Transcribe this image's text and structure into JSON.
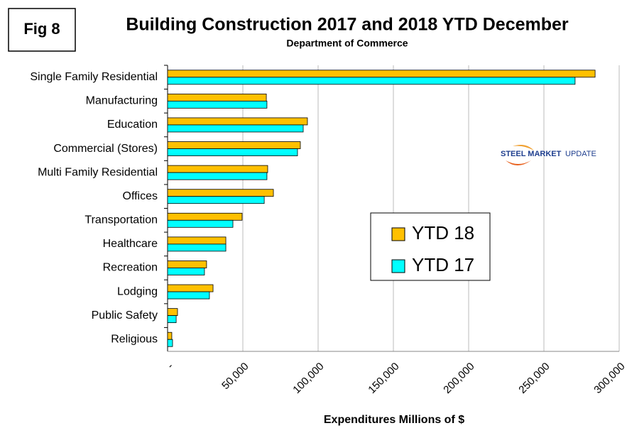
{
  "chart_data": {
    "type": "hbar",
    "fig_label": "Fig 8",
    "title": "Building Construction 2017 and 2018 YTD December",
    "subtitle": "Department of Commerce",
    "x_label": "Expenditures Millions of $",
    "logo_text": [
      "STEEL MARKET",
      "UPDATE"
    ],
    "categories": [
      "Single Family Residential",
      "Manufacturing",
      "Education",
      "Commercial (Stores)",
      "Multi Family Residential",
      "Offices",
      "Transportation",
      "Healthcare",
      "Recreation",
      "Lodging",
      "Public Safety",
      "Religious"
    ],
    "series": [
      {
        "name": "YTD 18",
        "color": "#ffc000",
        "values": [
          284000,
          65600,
          92900,
          88200,
          66500,
          70300,
          49500,
          38700,
          25900,
          30200,
          6600,
          2800
        ]
      },
      {
        "name": "YTD 17",
        "color": "#00ffff",
        "values": [
          270700,
          66000,
          90100,
          86300,
          66000,
          64200,
          43400,
          38700,
          24500,
          27800,
          5700,
          3300
        ]
      }
    ],
    "xlim": [
      0,
      300000
    ],
    "xticks": [
      {
        "value": 0,
        "label": "-"
      },
      {
        "value": 50000,
        "label": "50,000"
      },
      {
        "value": 100000,
        "label": "100,000"
      },
      {
        "value": 150000,
        "label": "150,000"
      },
      {
        "value": 200000,
        "label": "200,000"
      },
      {
        "value": 250000,
        "label": "250,000"
      },
      {
        "value": 300000,
        "label": "300,000"
      }
    ],
    "grid": true
  }
}
